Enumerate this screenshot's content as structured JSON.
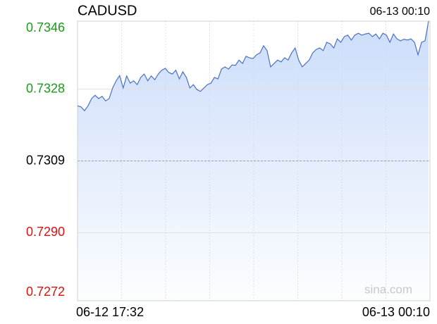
{
  "chart_data": {
    "type": "line",
    "title": "CADUSD",
    "last_time": "06-13 00:10",
    "x_start": "06-12 17:32",
    "x_end": "06-13 00:10",
    "watermark": "sina.com",
    "ylim": [
      0.7272,
      0.7346
    ],
    "yticks": [
      0.7346,
      0.7328,
      0.7309,
      {
        "value": 0.729,
        "label": "0.7290"
      },
      0.7272
    ],
    "reference": 0.7309,
    "up_color": "#1a9a1a",
    "down_color": "#e01010",
    "flat_color": "#000000",
    "color": "#4a72c4",
    "fill": "#c9dbfa",
    "values": [
      0.73236,
      0.73233,
      0.73223,
      0.73236,
      0.73255,
      0.73264,
      0.73255,
      0.73261,
      0.73249,
      0.73255,
      0.73283,
      0.73302,
      0.73316,
      0.73283,
      0.73315,
      0.73296,
      0.73302,
      0.73292,
      0.73311,
      0.7332,
      0.73302,
      0.73315,
      0.73305,
      0.7332,
      0.7333,
      0.73335,
      0.73324,
      0.7332,
      0.7333,
      0.73307,
      0.73326,
      0.73311,
      0.73283,
      0.73292,
      0.73279,
      0.73274,
      0.73283,
      0.73292,
      0.73296,
      0.73311,
      0.73307,
      0.73333,
      0.73339,
      0.73333,
      0.73344,
      0.73343,
      0.73357,
      0.73348,
      0.73367,
      0.73363,
      0.73361,
      0.73371,
      0.73376,
      0.73395,
      0.73382,
      0.73339,
      0.73348,
      0.73357,
      0.73352,
      0.73363,
      0.73357,
      0.73376,
      0.73389,
      0.73357,
      0.73339,
      0.73348,
      0.73357,
      0.73376,
      0.73385,
      0.73389,
      0.73382,
      0.73404,
      0.734,
      0.73389,
      0.73413,
      0.73404,
      0.73419,
      0.73423,
      0.7341,
      0.73423,
      0.73428,
      0.73423,
      0.73426,
      0.73428,
      0.73419,
      0.73426,
      0.73413,
      0.73428,
      0.73423,
      0.73404,
      0.73426,
      0.73413,
      0.73408,
      0.73412,
      0.7341,
      0.73413,
      0.73404,
      0.73371,
      0.73404,
      0.73408,
      0.7346
    ]
  }
}
